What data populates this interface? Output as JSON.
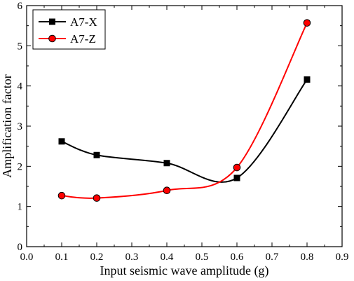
{
  "chart_data": {
    "type": "line",
    "title": "",
    "xlabel": "Input  seismic wave amplitude (g)",
    "ylabel": "Amplification factor",
    "xlim": [
      0.0,
      0.9
    ],
    "ylim": [
      0,
      6
    ],
    "xticks": [
      "0.0",
      "0.1",
      "0.2",
      "0.3",
      "0.4",
      "0.5",
      "0.6",
      "0.7",
      "0.8",
      "0.9"
    ],
    "yticks": [
      "0",
      "1",
      "2",
      "3",
      "4",
      "5",
      "6"
    ],
    "grid": false,
    "legend_position": "top-left",
    "series": [
      {
        "name": "A7-X",
        "marker": "square",
        "color": "#000000",
        "points": [
          {
            "x": 0.1,
            "y": 2.62
          },
          {
            "x": 0.2,
            "y": 2.28
          },
          {
            "x": 0.4,
            "y": 2.08
          },
          {
            "x": 0.6,
            "y": 1.71
          },
          {
            "x": 0.8,
            "y": 4.16
          }
        ]
      },
      {
        "name": "A7-Z",
        "marker": "circle",
        "color": "#ff0000",
        "points": [
          {
            "x": 0.1,
            "y": 1.27
          },
          {
            "x": 0.2,
            "y": 1.21
          },
          {
            "x": 0.4,
            "y": 1.4
          },
          {
            "x": 0.6,
            "y": 1.97
          },
          {
            "x": 0.8,
            "y": 5.57
          }
        ]
      }
    ]
  }
}
